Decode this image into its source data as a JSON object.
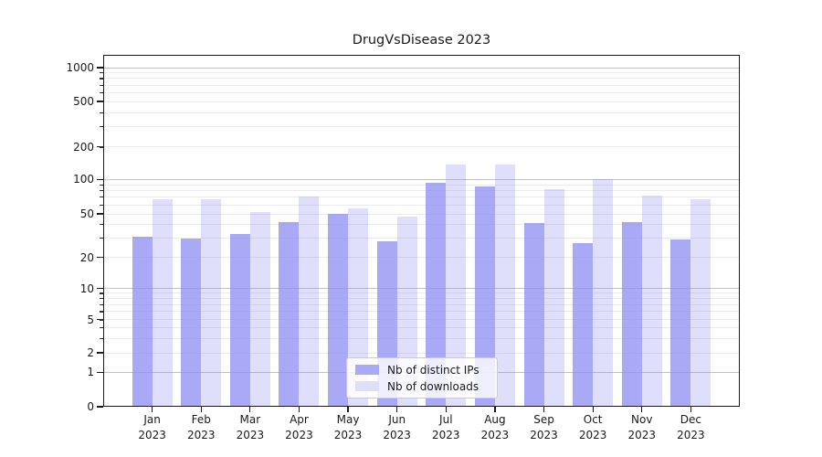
{
  "title": "DrugVsDisease 2023",
  "chart_data": {
    "type": "bar",
    "title": "DrugVsDisease 2023",
    "x_ticks": [
      {
        "top": "Jan",
        "bottom": "2023"
      },
      {
        "top": "Feb",
        "bottom": "2023"
      },
      {
        "top": "Mar",
        "bottom": "2023"
      },
      {
        "top": "Apr",
        "bottom": "2023"
      },
      {
        "top": "May",
        "bottom": "2023"
      },
      {
        "top": "Jun",
        "bottom": "2023"
      },
      {
        "top": "Jul",
        "bottom": "2023"
      },
      {
        "top": "Aug",
        "bottom": "2023"
      },
      {
        "top": "Sep",
        "bottom": "2023"
      },
      {
        "top": "Oct",
        "bottom": "2023"
      },
      {
        "top": "Nov",
        "bottom": "2023"
      },
      {
        "top": "Dec",
        "bottom": "2023"
      }
    ],
    "series": [
      {
        "name": "Nb of distinct IPs",
        "values": [
          31,
          30,
          33,
          42,
          50,
          28,
          94,
          87,
          41,
          27,
          42,
          29
        ],
        "color": "rgba(140,140,242,0.75)",
        "legend_color": "#a9a9f5"
      },
      {
        "name": "Nb of downloads",
        "values": [
          67,
          67,
          52,
          71,
          56,
          47,
          138,
          138,
          82,
          100,
          73,
          67
        ],
        "color": "rgba(140,140,242,0.28)",
        "legend_color": "#dfdffb"
      }
    ],
    "yscale": "symlog",
    "ylim": [
      0,
      1300
    ],
    "y_tick_labels": [
      "0",
      "1",
      "2",
      "5",
      "10",
      "20",
      "50",
      "100",
      "200",
      "500",
      "1000"
    ],
    "y_tick_values": [
      0,
      1,
      2,
      5,
      10,
      20,
      50,
      100,
      200,
      500,
      1000
    ],
    "y_major_gridlines": [
      1,
      10,
      100,
      1000
    ],
    "y_minor_gridlines": [
      2,
      3,
      4,
      5,
      6,
      7,
      8,
      9,
      20,
      30,
      40,
      50,
      60,
      70,
      80,
      90,
      200,
      300,
      400,
      500,
      600,
      700,
      800,
      900
    ],
    "grid": true,
    "legend_position": "lower center"
  },
  "colors": {
    "bar_base": "#8c8cf2",
    "grid_major": "#c3c3c3",
    "grid_minor": "#ebebeb",
    "spine": "#1a1a1a",
    "text": "#1a1a1a"
  }
}
